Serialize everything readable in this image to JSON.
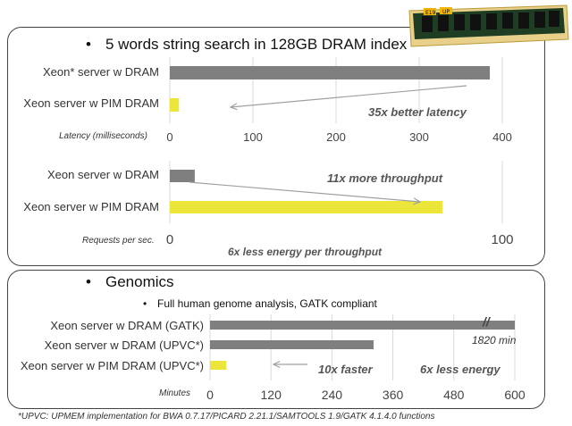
{
  "panel1": {
    "bullet": "•",
    "title": "5 words string search in 128GB DRAM index"
  },
  "panel2": {
    "bullet": "•",
    "title": "Genomics",
    "sub_bullet": "•",
    "sub_title": "Full human genome analysis, GATK compliant"
  },
  "chip_image": {
    "label_left": "E19",
    "label_right": "UP"
  },
  "chart_data": [
    {
      "type": "bar",
      "orientation": "horizontal",
      "categories": [
        "Xeon* server w DRAM",
        "Xeon server w PIM DRAM"
      ],
      "values": [
        385,
        11
      ],
      "xlabel": "Latency (milliseconds)",
      "xlim": [
        0,
        400
      ],
      "x_ticks": [
        "0",
        "100",
        "200",
        "300",
        "400"
      ],
      "bar_colors": [
        "#7f7f7f",
        "#ece63a"
      ],
      "grid": true,
      "annotation": "35x better latency"
    },
    {
      "type": "bar",
      "orientation": "horizontal",
      "categories": [
        "Xeon server w DRAM",
        "Xeon server w PIM DRAM"
      ],
      "values": [
        7.5,
        82
      ],
      "xlabel": "Requests per sec.",
      "xlim": [
        0,
        100
      ],
      "x_ticks": [
        "0",
        "100"
      ],
      "bar_colors": [
        "#7f7f7f",
        "#ece63a"
      ],
      "grid": true,
      "annotations": [
        "11x more throughput",
        "6x less energy per throughput"
      ]
    },
    {
      "type": "bar",
      "orientation": "horizontal",
      "categories": [
        "Xeon server w DRAM (GATK)",
        "Xeon server w DRAM (UPVC*)",
        "Xeon server w PIM DRAM (UPVC*)"
      ],
      "values": [
        1820,
        322,
        32
      ],
      "xlabel": "Minutes",
      "xlim": [
        0,
        600
      ],
      "x_ticks": [
        "0",
        "120",
        "240",
        "360",
        "480",
        "600"
      ],
      "bar_colors": [
        "#7f7f7f",
        "#7f7f7f",
        "#ece63a"
      ],
      "grid": true,
      "axis_break": "//",
      "break_label": "1820 min",
      "annotations": [
        "10x faster",
        "6x less energy"
      ]
    }
  ],
  "footnote": "*UPVC: UPMEM implementation for BWA 0.7.17/PICARD 2.21.1/SAMTOOLS 1.9/GATK 4.1.4.0 functions"
}
